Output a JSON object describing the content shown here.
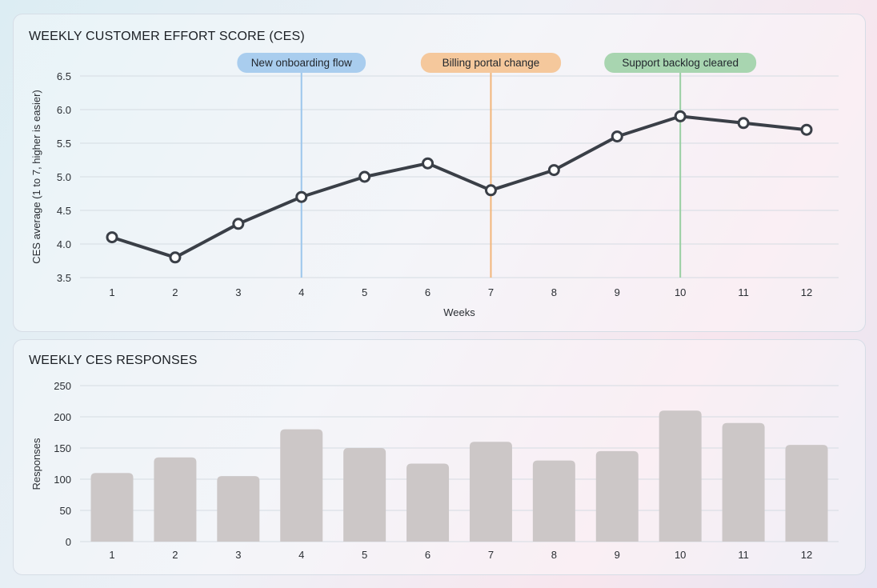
{
  "chart_data": [
    {
      "type": "line",
      "title": "WEEKLY CUSTOMER EFFORT SCORE (CES)",
      "xlabel": "Weeks",
      "ylabel": "CES average (1 to 7, higher is easier)",
      "x": [
        1,
        2,
        3,
        4,
        5,
        6,
        7,
        8,
        9,
        10,
        11,
        12
      ],
      "y": [
        4.1,
        3.8,
        4.3,
        4.7,
        5.0,
        5.2,
        4.8,
        5.1,
        5.6,
        5.9,
        5.8,
        5.7
      ],
      "ylim": [
        3.5,
        6.5
      ],
      "yticks": [
        "3.5",
        "4.0",
        "4.5",
        "5.0",
        "5.5",
        "6.0",
        "6.5"
      ],
      "grid": true,
      "line_color": "#3a3f47",
      "annotations": [
        {
          "x": 4,
          "label": "New onboarding flow",
          "color": "#a9cdee",
          "line_color": "#9cc6ec"
        },
        {
          "x": 7,
          "label": "Billing portal change",
          "color": "#f5c89c",
          "line_color": "#f2b57a"
        },
        {
          "x": 10,
          "label": "Support backlog cleared",
          "color": "#a8d5b0",
          "line_color": "#99cfa2"
        }
      ]
    },
    {
      "type": "bar",
      "title": "WEEKLY CES RESPONSES",
      "xlabel": "",
      "ylabel": "Responses",
      "categories": [
        "1",
        "2",
        "3",
        "4",
        "5",
        "6",
        "7",
        "8",
        "9",
        "10",
        "11",
        "12"
      ],
      "values": [
        110,
        135,
        105,
        180,
        150,
        125,
        160,
        130,
        145,
        210,
        190,
        155
      ],
      "ylim": [
        0,
        250
      ],
      "yticks": [
        "0",
        "50",
        "100",
        "150",
        "200",
        "250"
      ],
      "grid": true,
      "bar_color": "#ccc7c7"
    }
  ]
}
